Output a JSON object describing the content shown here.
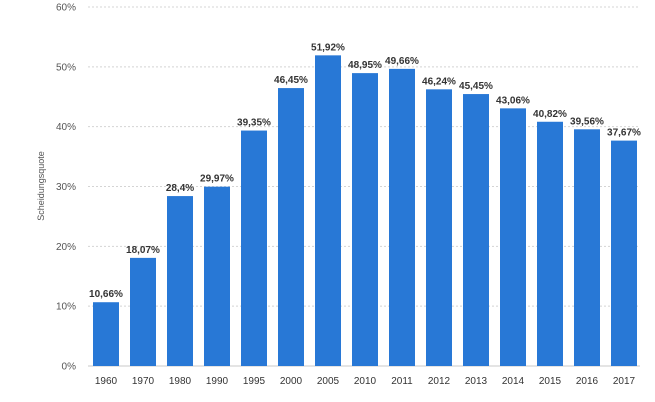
{
  "chart_data": {
    "type": "bar",
    "title": "",
    "xlabel": "",
    "ylabel": "Scheidungsquote",
    "ylim": [
      0,
      60
    ],
    "yticks": [
      "0%",
      "10%",
      "20%",
      "30%",
      "40%",
      "50%",
      "60%"
    ],
    "yticks_values": [
      0,
      10,
      20,
      30,
      40,
      50,
      60
    ],
    "grid": true,
    "bar_color": "#2878d6",
    "categories": [
      "1960",
      "1970",
      "1980",
      "1990",
      "1995",
      "2000",
      "2005",
      "2010",
      "2011",
      "2012",
      "2013",
      "2014",
      "2015",
      "2016",
      "2017"
    ],
    "values": [
      10.66,
      18.07,
      28.4,
      29.97,
      39.35,
      46.45,
      51.92,
      48.95,
      49.66,
      46.24,
      45.45,
      43.06,
      40.82,
      39.56,
      37.67
    ],
    "data_labels": [
      "10,66%",
      "18,07%",
      "28,4%",
      "29,97%",
      "39,35%",
      "46,45%",
      "51,92%",
      "48,95%",
      "49,66%",
      "46,24%",
      "45,45%",
      "43,06%",
      "40,82%",
      "39,56%",
      "37,67%"
    ]
  }
}
